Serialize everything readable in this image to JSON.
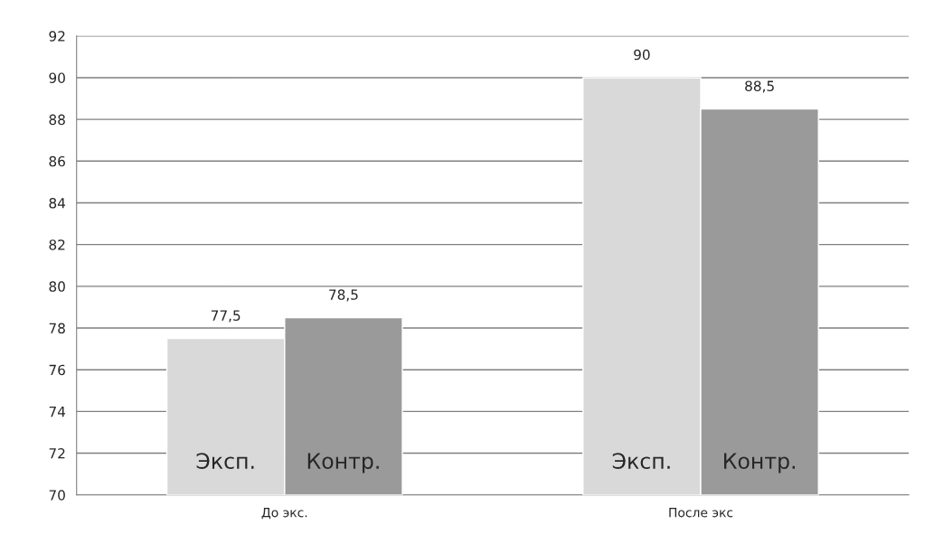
{
  "chart_data": {
    "type": "bar",
    "categories": [
      "До экс.",
      "После экс"
    ],
    "series": [
      {
        "name": "Эксп.",
        "color": "#d9d9d9",
        "values": [
          77.5,
          90
        ],
        "value_labels": [
          "77,5",
          "90"
        ]
      },
      {
        "name": "Контр.",
        "color": "#9a9a9a",
        "values": [
          78.5,
          88.5
        ],
        "value_labels": [
          "78,5",
          "88,5"
        ]
      }
    ],
    "ylim": [
      70,
      92
    ],
    "yticks": [
      70,
      72,
      74,
      76,
      78,
      80,
      82,
      84,
      86,
      88,
      90,
      92
    ],
    "grid": "y",
    "legend": false
  }
}
